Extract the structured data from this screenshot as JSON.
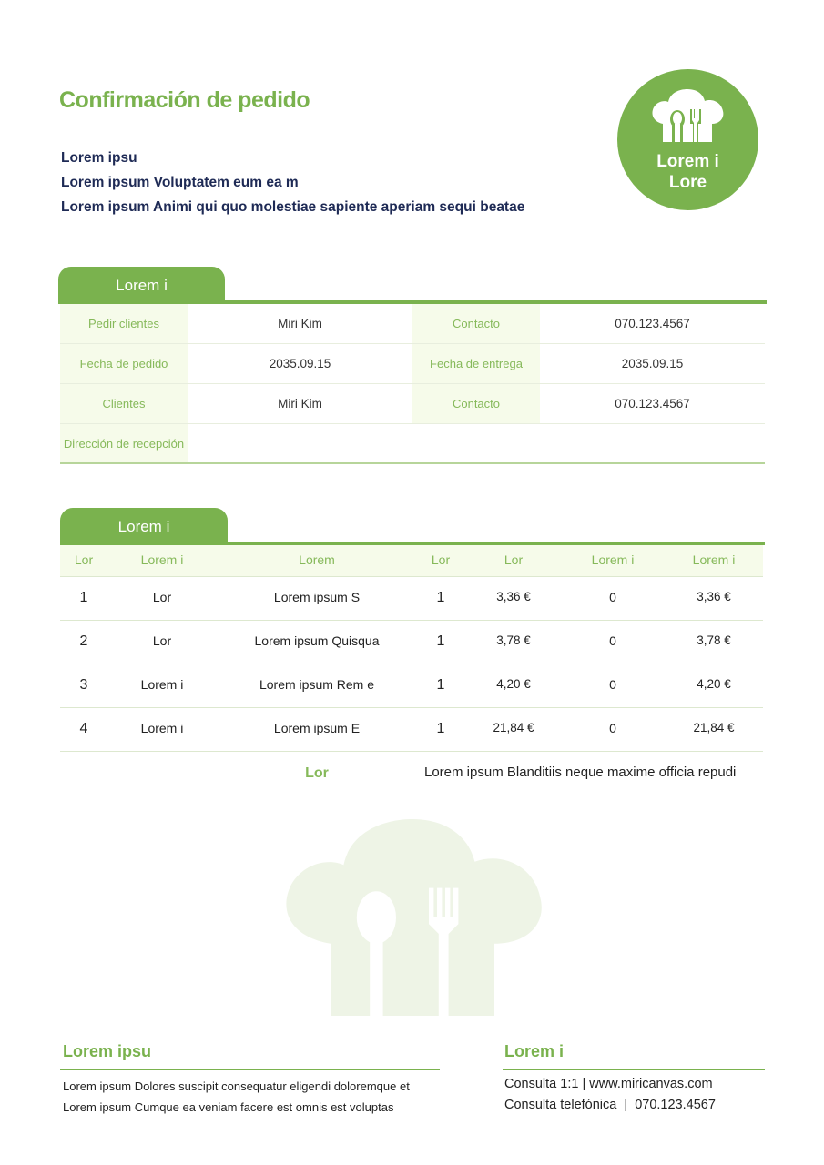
{
  "title": "Confirmación de pedido",
  "subtitles": [
    "Lorem ipsu",
    "Lorem ipsum Voluptatem eum ea m",
    "Lorem ipsum Animi qui quo molestiae sapiente aperiam sequi beatae"
  ],
  "logo": {
    "icon": "chef-hat-utensils-icon",
    "line1": "Lorem i",
    "line2": "Lore"
  },
  "colors": {
    "accent": "#7ab24e",
    "navy": "#1e2a55",
    "label_bg": "#f6fbea"
  },
  "info": {
    "tab": "Lorem i",
    "rows": [
      {
        "l1": "Pedir clientes",
        "v1": "Miri Kim",
        "l2": "Contacto",
        "v2": "070.123.4567"
      },
      {
        "l1": "Fecha de pedido",
        "v1": "2035.09.15",
        "l2": "Fecha de entrega",
        "v2": "2035.09.15"
      },
      {
        "l1": "Clientes",
        "v1": "Miri Kim",
        "l2": "Contacto",
        "v2": "070.123.4567"
      },
      {
        "l1": "Dirección de recepción",
        "v1": "",
        "l2": "",
        "v2": ""
      }
    ]
  },
  "items": {
    "tab": "Lorem i",
    "headers": [
      "Lor",
      "Lorem i",
      "Lorem",
      "Lor",
      "Lor",
      "Lorem i",
      "Lorem i"
    ],
    "rows": [
      [
        "1",
        "Lor",
        "Lorem ipsum S",
        "1",
        "3,36 €",
        "0",
        "3,36 €"
      ],
      [
        "2",
        "Lor",
        "Lorem ipsum Quisqua",
        "1",
        "3,78 €",
        "0",
        "3,78 €"
      ],
      [
        "3",
        "Lorem i",
        "Lorem ipsum Rem e",
        "1",
        "4,20 €",
        "0",
        "4,20 €"
      ],
      [
        "4",
        "Lorem i",
        "Lorem ipsum E",
        "1",
        "21,84 €",
        "0",
        "21,84 €"
      ]
    ],
    "total_label": "Lor",
    "total_value": "Lorem ipsum Blanditiis neque maxime officia repudi"
  },
  "footer": {
    "left": {
      "heading": "Lorem ipsu",
      "lines": [
        "Lorem ipsum Dolores suscipit consequatur eligendi doloremque et",
        "Lorem ipsum Cumque ea veniam facere est omnis est voluptas"
      ]
    },
    "right": {
      "heading": "Lorem i",
      "lines": [
        "Consulta 1:1 | www.miricanvas.com",
        "Consulta telefónica  |  070.123.4567"
      ]
    }
  }
}
